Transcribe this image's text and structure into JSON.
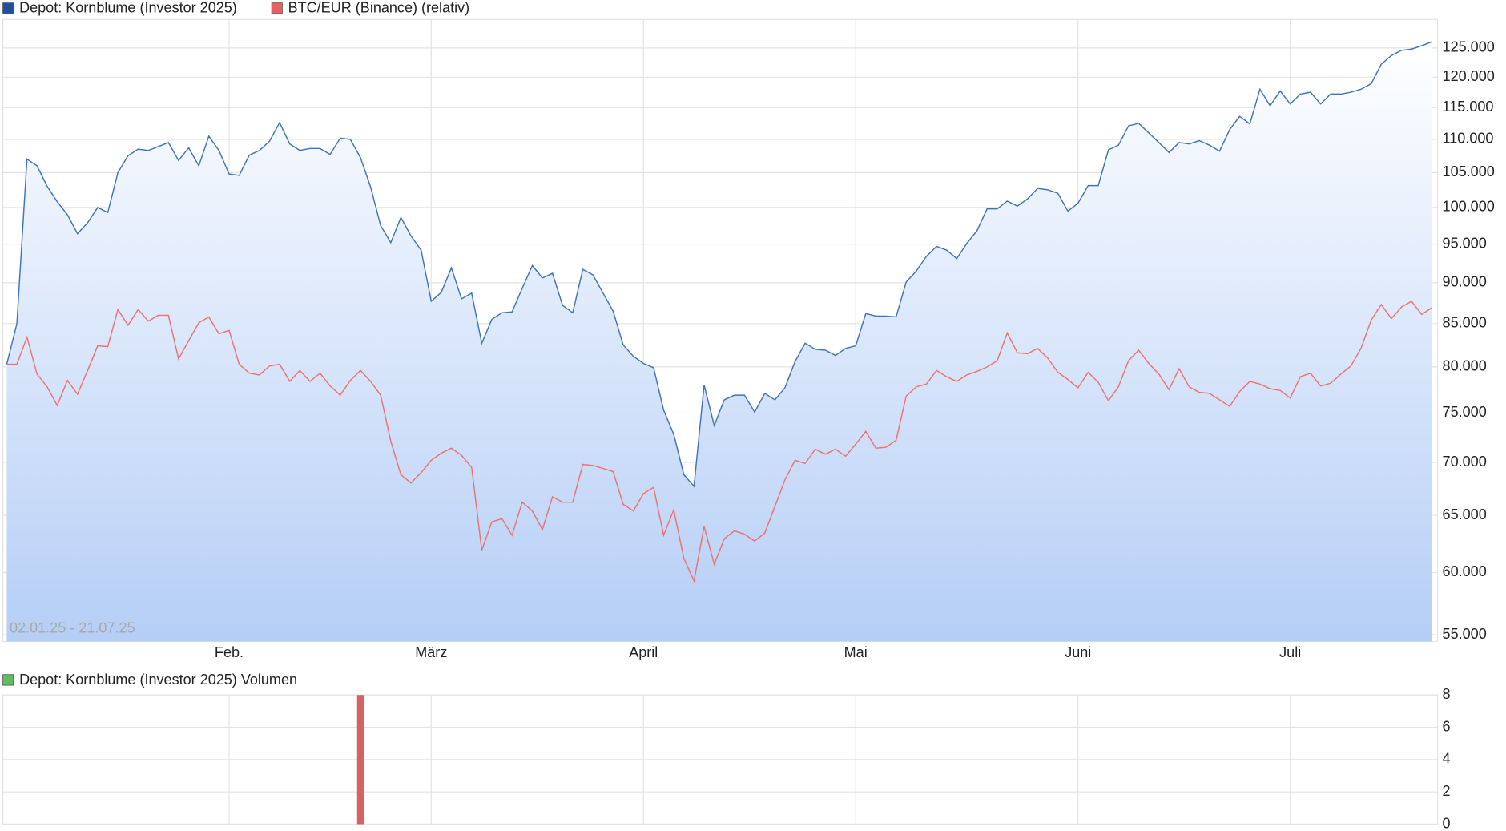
{
  "chart_data": [
    {
      "type": "line",
      "log": true,
      "grid": true,
      "fill": true,
      "legend": "top-left",
      "annotation": "02.01.25 - 21.07.25",
      "xlim": [
        0,
        141
      ],
      "xticks": [
        {
          "value": 22,
          "label": "Feb."
        },
        {
          "value": 42,
          "label": "März"
        },
        {
          "value": 63,
          "label": "April"
        },
        {
          "value": 84,
          "label": "Mai"
        },
        {
          "value": 106,
          "label": "Juni"
        },
        {
          "value": 127,
          "label": "Juli"
        }
      ],
      "ylim": [
        54480,
        130100
      ],
      "yticks": [
        {
          "value": 55000,
          "label": "55.000"
        },
        {
          "value": 60000,
          "label": "60.000"
        },
        {
          "value": 65000,
          "label": "65.000"
        },
        {
          "value": 70000,
          "label": "70.000"
        },
        {
          "value": 75000,
          "label": "75.000"
        },
        {
          "value": 80000,
          "label": "80.000"
        },
        {
          "value": 85000,
          "label": "85.000"
        },
        {
          "value": 90000,
          "label": "90.000"
        },
        {
          "value": 95000,
          "label": "95.000"
        },
        {
          "value": 100000,
          "label": "100.000"
        },
        {
          "value": 105000,
          "label": "105.000"
        },
        {
          "value": 110000,
          "label": "110.000"
        },
        {
          "value": 115000,
          "label": "115.000"
        },
        {
          "value": 120000,
          "label": "120.000"
        },
        {
          "value": 125000,
          "label": "125.000"
        }
      ],
      "series": [
        {
          "name": "Depot: Kornblume (Investor 2025)",
          "color": "#3f74b8",
          "legend_color": "#1f4fa0",
          "values": [
            80300,
            85000,
            107000,
            106000,
            103000,
            100800,
            99000,
            96400,
            97900,
            100000,
            99300,
            105000,
            107500,
            108500,
            108300,
            108900,
            109500,
            106800,
            108700,
            106000,
            110500,
            108300,
            104800,
            104600,
            107600,
            108300,
            109700,
            112600,
            109300,
            108300,
            108600,
            108600,
            107700,
            110200,
            110000,
            107200,
            102900,
            97500,
            95200,
            98600,
            96100,
            94200,
            87700,
            88800,
            91900,
            88000,
            88700,
            82700,
            85500,
            86300,
            86400,
            89300,
            92200,
            90600,
            91200,
            87200,
            86300,
            91700,
            91000,
            88700,
            86500,
            82500,
            81200,
            80400,
            79900,
            75300,
            72800,
            68800,
            67700,
            78000,
            73700,
            76400,
            76900,
            76900,
            75100,
            77100,
            76400,
            77700,
            80600,
            82700,
            82000,
            81900,
            81300,
            82100,
            82400,
            86200,
            85900,
            85900,
            85800,
            90100,
            91500,
            93400,
            94700,
            94200,
            93100,
            95100,
            96800,
            99800,
            99800,
            100900,
            100200,
            101200,
            102700,
            102500,
            102000,
            99500,
            100600,
            103100,
            103100,
            108400,
            109100,
            112100,
            112500,
            111000,
            109500,
            108000,
            109500,
            109300,
            109800,
            109100,
            108200,
            111500,
            113600,
            112400,
            118000,
            115300,
            117700,
            115600,
            117200,
            117500,
            115600,
            117200,
            117200,
            117500,
            118000,
            118900,
            122200,
            123700,
            124600,
            124800,
            125400,
            126100
          ]
        },
        {
          "name": "BTC/EUR (Binance) (relativ)",
          "color": "#f07070",
          "legend_color": "#e86060",
          "values": [
            80300,
            80300,
            83400,
            79200,
            77800,
            75800,
            78500,
            77000,
            79600,
            82400,
            82300,
            86700,
            84800,
            86700,
            85300,
            86000,
            86000,
            80900,
            83000,
            85100,
            85800,
            83800,
            84200,
            80300,
            79300,
            79100,
            80100,
            80300,
            78400,
            79600,
            78400,
            79300,
            77900,
            76900,
            78500,
            79600,
            78400,
            76900,
            72100,
            68800,
            68000,
            69000,
            70200,
            70900,
            71400,
            70700,
            69500,
            61900,
            64400,
            64700,
            63200,
            66200,
            65400,
            63700,
            66700,
            66200,
            66200,
            69800,
            69700,
            69400,
            69100,
            66000,
            65400,
            67000,
            67600,
            63200,
            65500,
            61200,
            59300,
            64000,
            60700,
            62900,
            63600,
            63300,
            62700,
            63400,
            65800,
            68300,
            70200,
            69900,
            71300,
            70800,
            71300,
            70600,
            71800,
            73100,
            71400,
            71500,
            72200,
            76800,
            77800,
            78100,
            79600,
            78900,
            78400,
            79100,
            79500,
            80000,
            80700,
            83900,
            81600,
            81500,
            82100,
            81000,
            79400,
            78600,
            77700,
            79400,
            78300,
            76300,
            77800,
            80700,
            81900,
            80400,
            79200,
            77500,
            79800,
            77800,
            77200,
            77100,
            76400,
            75700,
            77300,
            78400,
            78100,
            77600,
            77400,
            76600,
            78900,
            79300,
            77900,
            78200,
            79200,
            80100,
            82100,
            85400,
            87300,
            85600,
            87000,
            87700,
            86100,
            86900
          ]
        }
      ]
    },
    {
      "type": "bar",
      "grid": true,
      "legend": "top-left",
      "xlim": [
        0,
        141
      ],
      "ylim": [
        0,
        8
      ],
      "yticks": [
        0,
        2,
        4,
        6,
        8
      ],
      "series": [
        {
          "name": "Depot: Kornblume (Investor 2025) Volumen",
          "color": "#5cc15c",
          "bar_color": "#d46464",
          "x": [
            35
          ],
          "values": [
            8
          ]
        }
      ]
    }
  ]
}
